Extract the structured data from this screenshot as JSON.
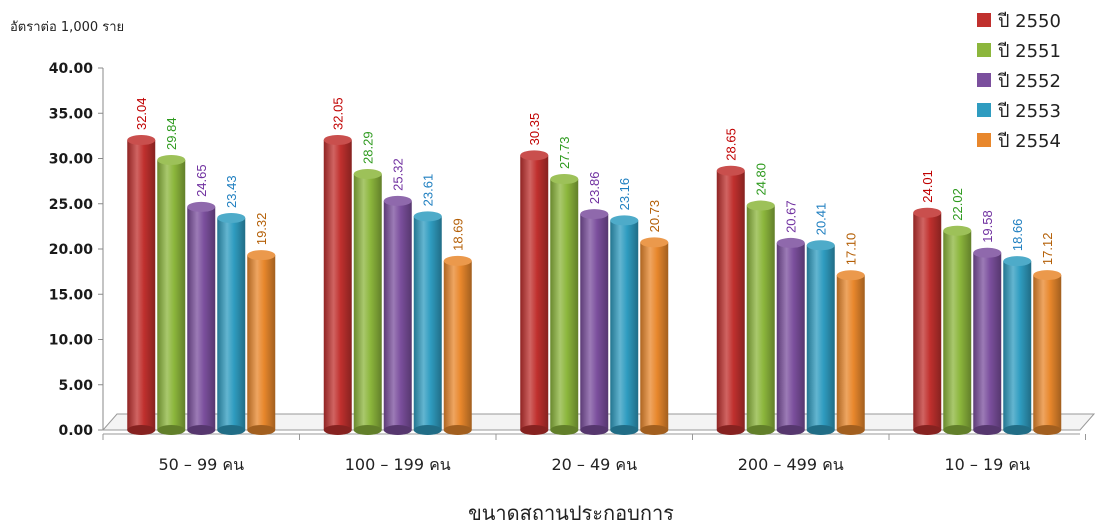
{
  "chart_data": {
    "type": "bar",
    "unit_label": "อัตราต่อ  1,000  ราย",
    "xlabel": "ขนาดสถานประกอบการ",
    "ylabel": "",
    "ylim": [
      0,
      40
    ],
    "y_ticks": [
      "0.00",
      "5.00",
      "10.00",
      "15.00",
      "20.00",
      "25.00",
      "30.00",
      "35.00",
      "40.00"
    ],
    "categories": [
      "50 – 99  คน",
      "100 – 199  คน",
      "20 – 49  คน",
      "200 – 499  คน",
      "10 – 19  คน"
    ],
    "series": [
      {
        "name": "ปี 2550",
        "color": "#c0302e",
        "label_color": "#c00000",
        "values": [
          32.04,
          32.05,
          30.35,
          28.65,
          24.01
        ]
      },
      {
        "name": "ปี 2551",
        "color": "#8cb63c",
        "label_color": "#2e9a1e",
        "values": [
          29.84,
          28.29,
          27.73,
          24.8,
          22.02
        ]
      },
      {
        "name": "ปี 2552",
        "color": "#7b4f9d",
        "label_color": "#7030a0",
        "values": [
          24.65,
          25.32,
          23.86,
          20.67,
          19.58
        ]
      },
      {
        "name": "ปี 2553",
        "color": "#2f9cc0",
        "label_color": "#1f7fc0",
        "values": [
          23.43,
          23.61,
          23.16,
          20.41,
          18.66
        ]
      },
      {
        "name": "ปี 2554",
        "color": "#e8872c",
        "label_color": "#b45f06",
        "values": [
          19.32,
          18.69,
          20.73,
          17.1,
          17.12
        ]
      }
    ],
    "data_labels": [
      [
        "32.04",
        "32.05",
        "30.35",
        "28.65",
        "24.01"
      ],
      [
        "29.84",
        "28.29",
        "27.73",
        "24.80",
        "22.02"
      ],
      [
        "24.65",
        "25.32",
        "23.86",
        "20.67",
        "19.58"
      ],
      [
        "23.43",
        "23.61",
        "23.16",
        "20.41",
        "18.66"
      ],
      [
        "19.32",
        "18.69",
        "20.73",
        "17.10",
        "17.12"
      ]
    ],
    "grid": false,
    "legend_position": "top-right"
  }
}
